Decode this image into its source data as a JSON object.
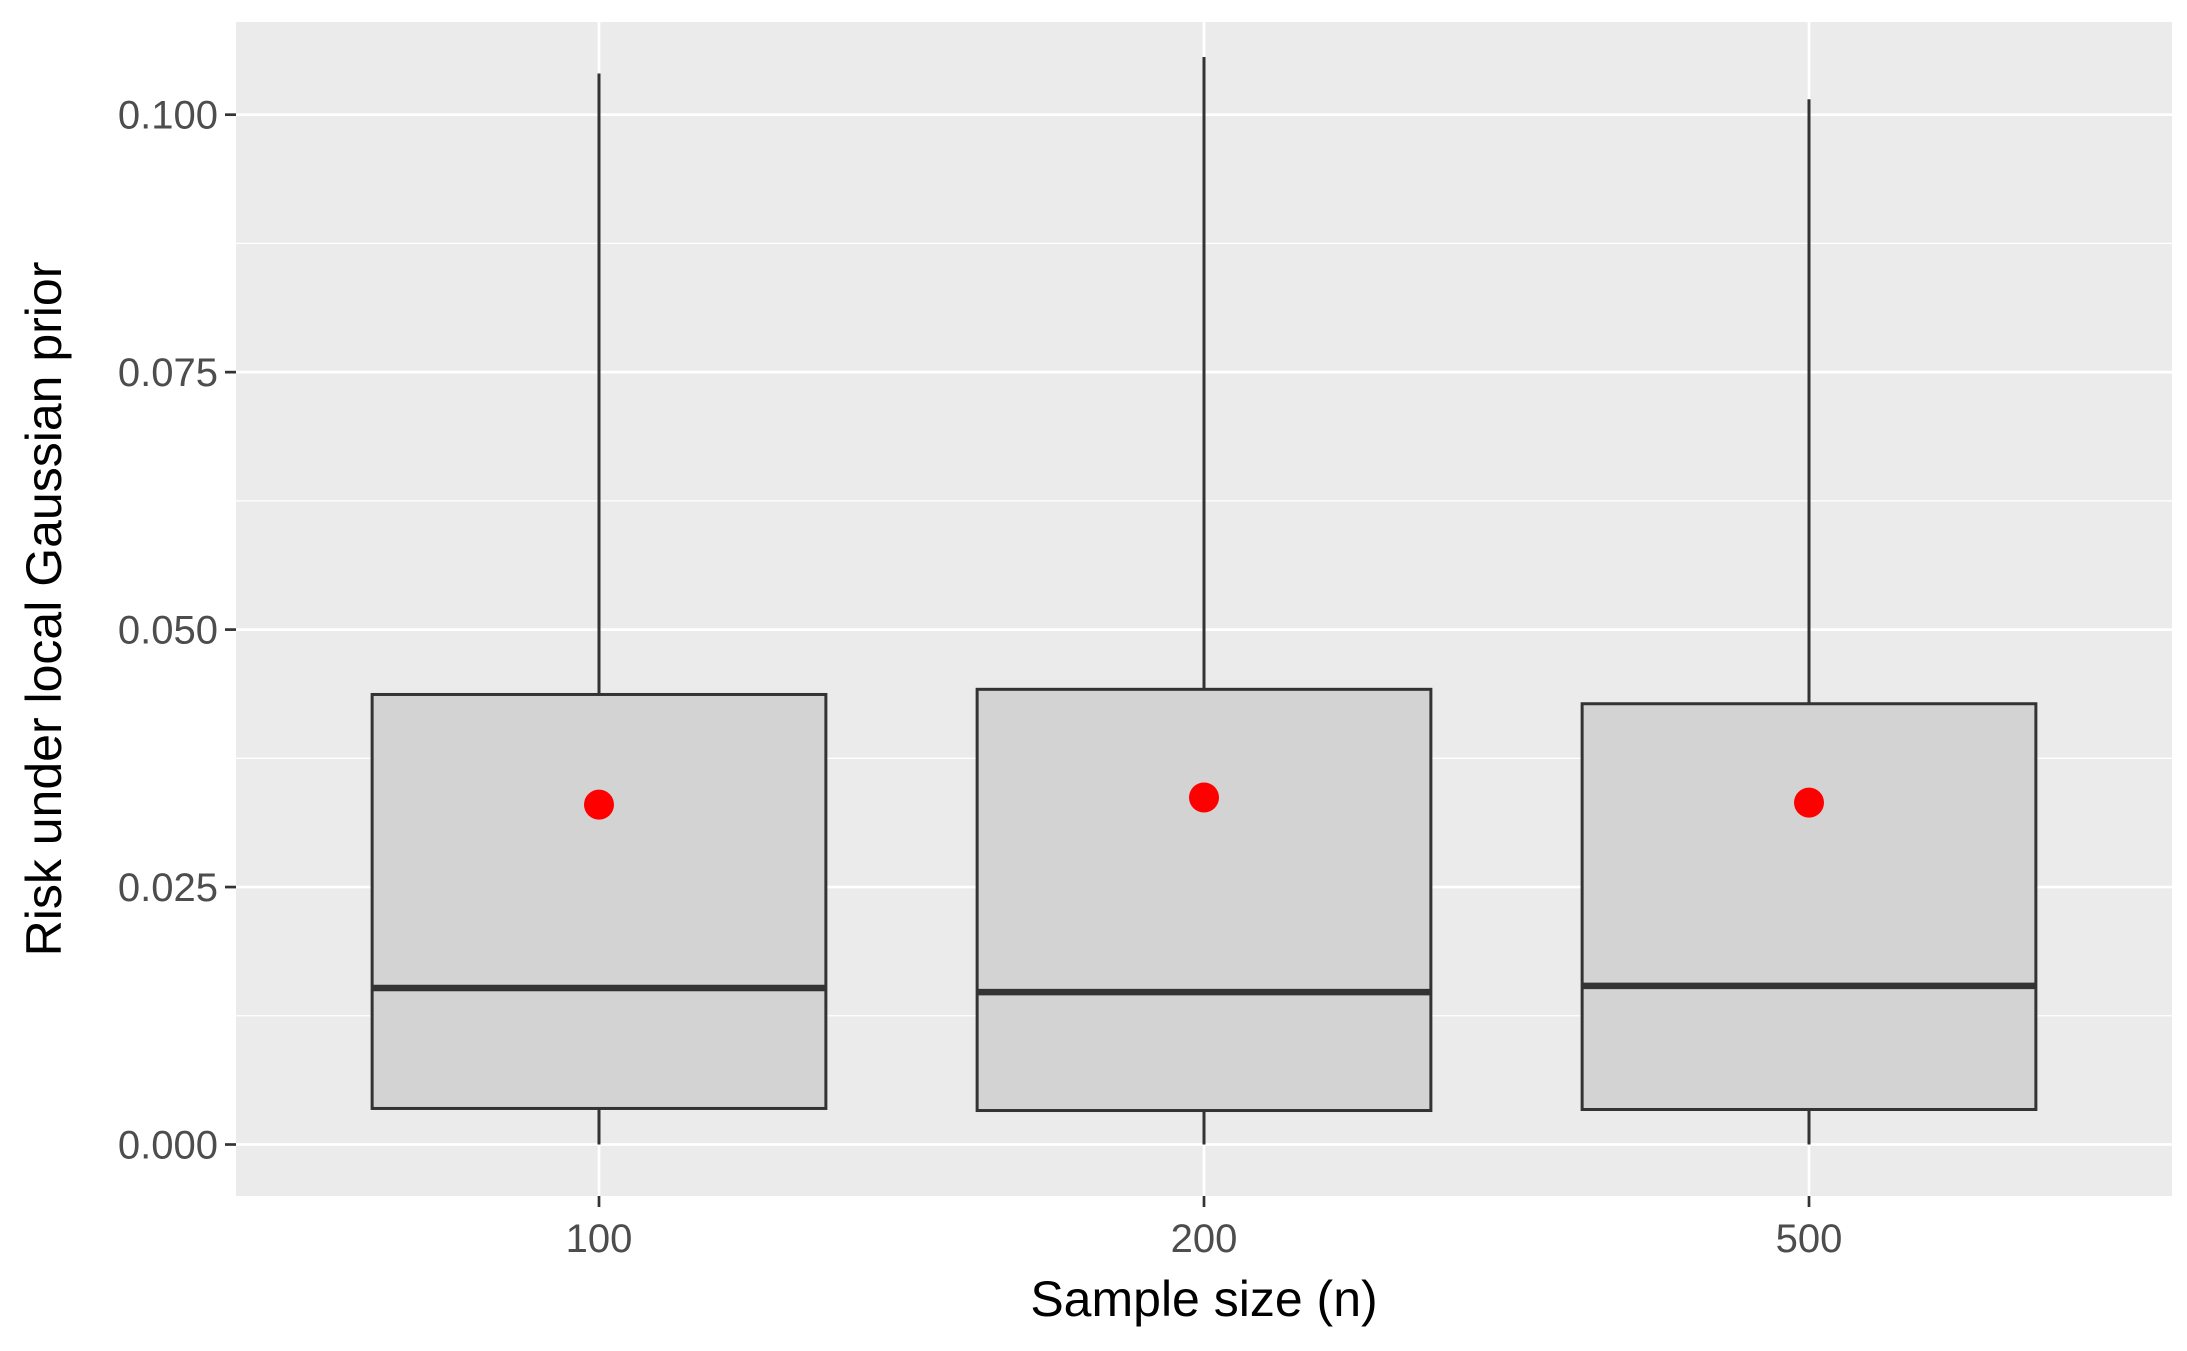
{
  "chart_data": {
    "type": "box",
    "xlabel": "Sample size (n)",
    "ylabel": "Risk under local Gaussian prior",
    "categories": [
      "100",
      "200",
      "500"
    ],
    "boxes": [
      {
        "category": "100",
        "whisker_low": 0.0,
        "q1": 0.0035,
        "median": 0.0152,
        "q3": 0.0437,
        "whisker_high": 0.104,
        "mean": 0.033
      },
      {
        "category": "200",
        "whisker_low": 0.0,
        "q1": 0.0033,
        "median": 0.0148,
        "q3": 0.0442,
        "whisker_high": 0.1056,
        "mean": 0.0337
      },
      {
        "category": "500",
        "whisker_low": 0.0,
        "q1": 0.0034,
        "median": 0.0154,
        "q3": 0.0428,
        "whisker_high": 0.1015,
        "mean": 0.0332
      }
    ],
    "ylim": [
      -0.005,
      0.109
    ],
    "yticks": [
      0.0,
      0.025,
      0.05,
      0.075,
      0.1
    ],
    "ytick_labels": [
      "0.000",
      "0.025",
      "0.050",
      "0.075",
      "0.100"
    ],
    "grid": true,
    "legend": "none",
    "colors": {
      "panel": "#ebebeb",
      "grid": "#ffffff",
      "box_fill": "#d3d3d3",
      "box_stroke": "#333333",
      "mean_point": "#ff0000",
      "tick_text": "#4d4d4d"
    }
  }
}
